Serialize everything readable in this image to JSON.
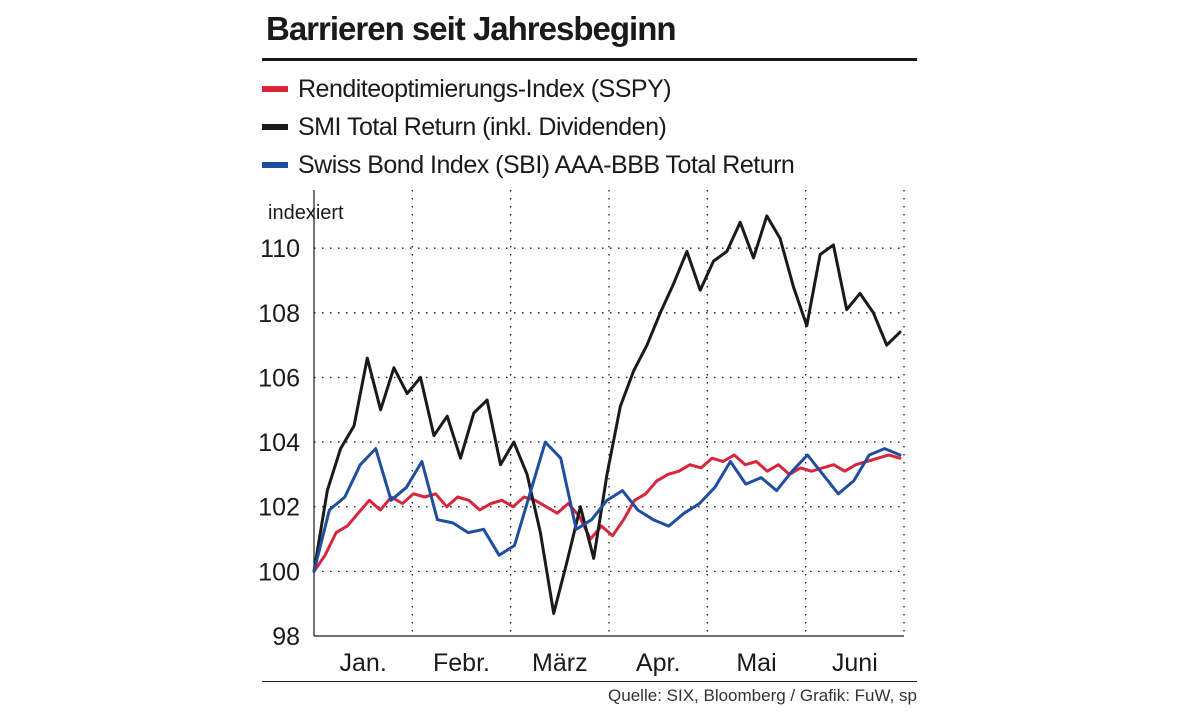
{
  "title": "Barrieren seit Jahresbeginn",
  "source": "Quelle: SIX, Bloomberg / Grafik: FuW, sp",
  "chart_data": {
    "type": "line",
    "ylabel": "indexiert",
    "xlabel": "",
    "ylim": [
      98,
      111.8
    ],
    "yticks": [
      98,
      100,
      102,
      104,
      106,
      108,
      110
    ],
    "month_labels": [
      "Jan.",
      "Febr.",
      "März",
      "Apr.",
      "Mai",
      "Juni"
    ],
    "grid": true,
    "legend_position": "top",
    "series": [
      {
        "name": "Renditeoptimierungs-Index (SSPY)",
        "color": "#d7263d",
        "values": [
          100,
          100.5,
          101.2,
          101.4,
          101.8,
          102.2,
          101.9,
          102.3,
          102.1,
          102.4,
          102.3,
          102.4,
          102.0,
          102.3,
          102.2,
          101.9,
          102.1,
          102.2,
          102.0,
          102.3,
          102.2,
          102.0,
          101.8,
          102.1,
          101.7,
          101.0,
          101.4,
          101.1,
          101.6,
          102.2,
          102.4,
          102.8,
          103.0,
          103.1,
          103.3,
          103.2,
          103.5,
          103.4,
          103.6,
          103.3,
          103.4,
          103.1,
          103.3,
          103.0,
          103.2,
          103.1,
          103.2,
          103.3,
          103.1,
          103.3,
          103.4,
          103.5,
          103.6,
          103.5
        ]
      },
      {
        "name": "SMI Total Return (inkl. Dividenden)",
        "color": "#1a1a1a",
        "values": [
          100,
          102.5,
          103.8,
          104.5,
          106.6,
          105.0,
          106.3,
          105.5,
          106.0,
          104.2,
          104.8,
          103.5,
          104.9,
          105.3,
          103.3,
          104.0,
          103.0,
          101.2,
          98.7,
          100.3,
          102.0,
          100.4,
          103.0,
          105.1,
          106.2,
          107.0,
          108.0,
          108.9,
          109.9,
          108.7,
          109.6,
          109.9,
          110.8,
          109.7,
          111.0,
          110.3,
          108.8,
          107.6,
          109.8,
          110.1,
          108.1,
          108.6,
          108.0,
          107.0,
          107.4
        ]
      },
      {
        "name": "Swiss Bond Index (SBI) AAA-BBB Total Return",
        "color": "#1f4e9e",
        "values": [
          100,
          101.9,
          102.3,
          103.3,
          103.8,
          102.2,
          102.6,
          103.4,
          101.6,
          101.5,
          101.2,
          101.3,
          100.5,
          100.8,
          102.4,
          104.0,
          103.5,
          101.3,
          101.6,
          102.2,
          102.5,
          101.9,
          101.6,
          101.4,
          101.8,
          102.1,
          102.6,
          103.4,
          102.7,
          102.9,
          102.5,
          103.1,
          103.6,
          103.0,
          102.4,
          102.8,
          103.6,
          103.8,
          103.6
        ]
      }
    ]
  }
}
